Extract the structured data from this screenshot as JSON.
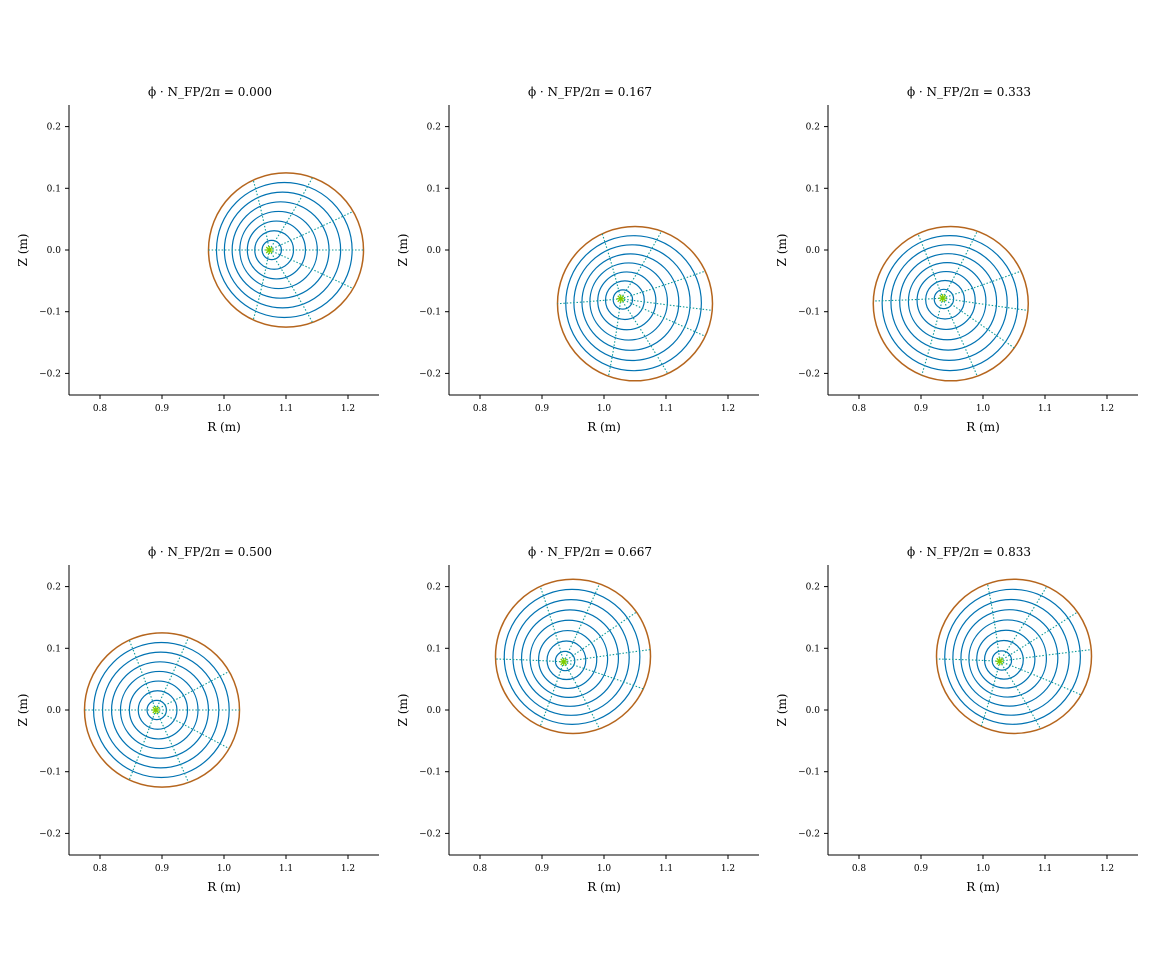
{
  "colors": {
    "flux_surface": "#0072b2",
    "boundary": "#b5651d",
    "theta_line": "#0f9a9a",
    "axis_marker": "#7ccc00"
  },
  "chart_data": [
    {
      "type": "line",
      "title": "ϕ · N_FP/2π = 0.000",
      "xlabel": "R (m)",
      "ylabel": "Z (m)",
      "xlim": [
        0.75,
        1.25
      ],
      "ylim": [
        -0.235,
        0.235
      ],
      "xticks": [
        "0.8",
        "0.9",
        "1.0",
        "1.1",
        "1.2"
      ],
      "yticks": [
        "−0.2",
        "−0.1",
        "0.0",
        "0.1",
        "0.2"
      ],
      "axis": {
        "R": 1.073,
        "Z": 0.0
      },
      "boundary": {
        "R0": 1.1,
        "Z0": 0.0,
        "a": 0.125
      },
      "theta_dir": [
        0,
        30,
        70,
        115,
        180,
        245,
        290,
        330
      ]
    },
    {
      "type": "line",
      "title": "ϕ · N_FP/2π = 0.167",
      "xlabel": "R (m)",
      "ylabel": "Z (m)",
      "xlim": [
        0.75,
        1.25
      ],
      "ylim": [
        -0.235,
        0.235
      ],
      "xticks": [
        "0.8",
        "0.9",
        "1.0",
        "1.1",
        "1.2"
      ],
      "yticks": [
        "−0.2",
        "−0.1",
        "0.0",
        "0.1",
        "0.2"
      ],
      "axis": {
        "R": 1.027,
        "Z": -0.079
      },
      "boundary": {
        "R0": 1.05,
        "Z0": -0.087,
        "a": 0.125
      },
      "theta_dir": [
        -5,
        25,
        70,
        115,
        180,
        250,
        295,
        335
      ]
    },
    {
      "type": "line",
      "title": "ϕ · N_FP/2π = 0.333",
      "xlabel": "R (m)",
      "ylabel": "Z (m)",
      "xlim": [
        0.75,
        1.25
      ],
      "ylim": [
        -0.235,
        0.235
      ],
      "xticks": [
        "0.8",
        "0.9",
        "1.0",
        "1.1",
        "1.2"
      ],
      "yticks": [
        "−0.2",
        "−0.1",
        "0.0",
        "0.1",
        "0.2"
      ],
      "axis": {
        "R": 0.935,
        "Z": -0.078
      },
      "boundary": {
        "R0": 0.948,
        "Z0": -0.087,
        "a": 0.125
      },
      "theta_dir": [
        -5,
        25,
        70,
        115,
        178,
        248,
        290,
        325
      ]
    },
    {
      "type": "line",
      "title": "ϕ · N_FP/2π = 0.500",
      "xlabel": "R (m)",
      "ylabel": "Z (m)",
      "xlim": [
        0.75,
        1.25
      ],
      "ylim": [
        -0.235,
        0.235
      ],
      "xticks": [
        "0.8",
        "0.9",
        "1.0",
        "1.1",
        "1.2"
      ],
      "yticks": [
        "−0.2",
        "−0.1",
        "0.0",
        "0.1",
        "0.2"
      ],
      "axis": {
        "R": 0.89,
        "Z": 0.0
      },
      "boundary": {
        "R0": 0.9,
        "Z0": 0.0,
        "a": 0.125
      },
      "theta_dir": [
        0,
        30,
        70,
        115,
        180,
        245,
        290,
        330
      ]
    },
    {
      "type": "line",
      "title": "ϕ · N_FP/2π = 0.667",
      "xlabel": "R (m)",
      "ylabel": "Z (m)",
      "xlim": [
        0.75,
        1.25
      ],
      "ylim": [
        -0.235,
        0.235
      ],
      "xticks": [
        "0.8",
        "0.9",
        "1.0",
        "1.1",
        "1.2"
      ],
      "yticks": [
        "−0.2",
        "−0.1",
        "0.0",
        "0.1",
        "0.2"
      ],
      "axis": {
        "R": 0.935,
        "Z": 0.078
      },
      "boundary": {
        "R0": 0.95,
        "Z0": 0.087,
        "a": 0.125
      },
      "theta_dir": [
        5,
        35,
        70,
        115,
        182,
        245,
        290,
        335
      ]
    },
    {
      "type": "line",
      "title": "ϕ · N_FP/2π = 0.833",
      "xlabel": "R (m)",
      "ylabel": "Z (m)",
      "xlim": [
        0.75,
        1.25
      ],
      "ylim": [
        -0.235,
        0.235
      ],
      "xticks": [
        "0.8",
        "0.9",
        "1.0",
        "1.1",
        "1.2"
      ],
      "yticks": [
        "−0.2",
        "−0.1",
        "0.0",
        "0.1",
        "0.2"
      ],
      "axis": {
        "R": 1.027,
        "Z": 0.079
      },
      "boundary": {
        "R0": 1.05,
        "Z0": 0.087,
        "a": 0.125
      },
      "theta_dir": [
        5,
        35,
        65,
        110,
        182,
        245,
        290,
        330
      ]
    }
  ]
}
